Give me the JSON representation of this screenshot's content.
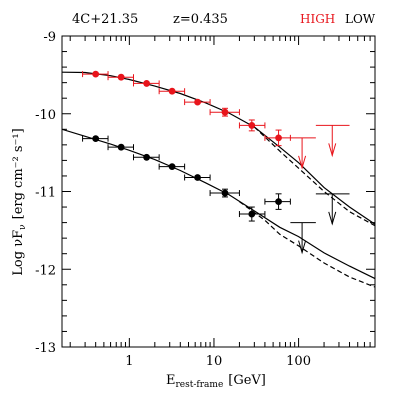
{
  "chart_data": {
    "type": "scatter",
    "header": {
      "source": "4C+21.35",
      "redshift": "z=0.435",
      "state_high": "HIGH",
      "state_low": "LOW"
    },
    "colors": {
      "high": "#e8141b",
      "low": "#000000",
      "axis": "#000000"
    },
    "xlabel": {
      "main": "E",
      "sub": "rest-frame",
      "unit": "[GeV]"
    },
    "ylabel": "Log νF",
    "ylabel_sub": "ν",
    "ylabel_unit": "[erg cm⁻² s⁻¹]",
    "x_scale": "log",
    "xlim": [
      0.16,
      800
    ],
    "ylim": [
      -13,
      -9
    ],
    "xticks": [
      1,
      10,
      100
    ],
    "xtick_labels": [
      "1",
      "10",
      "100"
    ],
    "yticks": [
      -9,
      -10,
      -11,
      -12,
      -13
    ],
    "ytick_labels": [
      "-9",
      "-10",
      "-11",
      "-12",
      "-13"
    ],
    "series": [
      {
        "name": "HIGH",
        "color": "#e8141b",
        "points": [
          {
            "x": 0.4,
            "y": -9.49,
            "xlo": 0.28,
            "xhi": 0.56
          },
          {
            "x": 0.8,
            "y": -9.53,
            "xlo": 0.56,
            "xhi": 1.12
          },
          {
            "x": 1.6,
            "y": -9.61,
            "xlo": 1.12,
            "xhi": 2.25
          },
          {
            "x": 3.2,
            "y": -9.71,
            "xlo": 2.25,
            "xhi": 4.5
          },
          {
            "x": 6.4,
            "y": -9.85,
            "xlo": 4.5,
            "xhi": 9.0
          },
          {
            "x": 13.5,
            "y": -9.98,
            "xlo": 9.0,
            "xhi": 20.0,
            "yerr": 0.05
          },
          {
            "x": 28.0,
            "y": -10.15,
            "xlo": 20.0,
            "xhi": 40.0,
            "yerr": 0.07
          },
          {
            "x": 58.0,
            "y": -10.31,
            "xlo": 40.0,
            "xhi": 80.0,
            "yerr": 0.1
          }
        ],
        "upper_limits": [
          {
            "x": 110,
            "y": -10.31,
            "xlo": 80,
            "xhi": 160
          },
          {
            "x": 250,
            "y": -10.15,
            "xlo": 160,
            "xhi": 400
          }
        ],
        "model_solid": [
          [
            0.16,
            -9.465
          ],
          [
            0.3,
            -9.47
          ],
          [
            0.6,
            -9.51
          ],
          [
            1,
            -9.56
          ],
          [
            2,
            -9.645
          ],
          [
            4,
            -9.74
          ],
          [
            8,
            -9.86
          ],
          [
            15,
            -9.99
          ],
          [
            30,
            -10.17
          ],
          [
            60,
            -10.43
          ],
          [
            100,
            -10.63
          ],
          [
            200,
            -10.95
          ],
          [
            400,
            -11.2
          ],
          [
            800,
            -11.42
          ]
        ],
        "model_dashed": [
          [
            30,
            -10.17
          ],
          [
            60,
            -10.48
          ],
          [
            100,
            -10.7
          ],
          [
            200,
            -11.0
          ],
          [
            400,
            -11.26
          ],
          [
            800,
            -11.44
          ]
        ]
      },
      {
        "name": "LOW",
        "color": "#000000",
        "points": [
          {
            "x": 0.4,
            "y": -10.32,
            "xlo": 0.28,
            "xhi": 0.56
          },
          {
            "x": 0.8,
            "y": -10.43,
            "xlo": 0.56,
            "xhi": 1.12
          },
          {
            "x": 1.6,
            "y": -10.56,
            "xlo": 1.12,
            "xhi": 2.25
          },
          {
            "x": 3.2,
            "y": -10.68,
            "xlo": 2.25,
            "xhi": 4.5
          },
          {
            "x": 6.4,
            "y": -10.82,
            "xlo": 4.5,
            "xhi": 9.0
          },
          {
            "x": 13.5,
            "y": -11.02,
            "xlo": 9.0,
            "xhi": 20.0,
            "yerr": 0.05
          },
          {
            "x": 28.0,
            "y": -11.29,
            "xlo": 20.0,
            "xhi": 40.0,
            "yerr": 0.09
          },
          {
            "x": 58.0,
            "y": -11.13,
            "xlo": 40.0,
            "xhi": 80.0,
            "yerr": 0.1
          }
        ],
        "upper_limits": [
          {
            "x": 110,
            "y": -11.4,
            "xlo": 80,
            "xhi": 160
          },
          {
            "x": 250,
            "y": -11.03,
            "xlo": 160,
            "xhi": 400
          }
        ],
        "model_solid": [
          [
            0.16,
            -10.2
          ],
          [
            0.3,
            -10.29
          ],
          [
            0.6,
            -10.39
          ],
          [
            1,
            -10.47
          ],
          [
            2,
            -10.59
          ],
          [
            4,
            -10.73
          ],
          [
            8,
            -10.89
          ],
          [
            15,
            -11.04
          ],
          [
            30,
            -11.25
          ],
          [
            60,
            -11.46
          ],
          [
            100,
            -11.58
          ],
          [
            200,
            -11.79
          ],
          [
            400,
            -11.96
          ],
          [
            800,
            -12.12
          ]
        ],
        "model_dashed": [
          [
            20,
            -11.13
          ],
          [
            40,
            -11.37
          ],
          [
            60,
            -11.55
          ],
          [
            100,
            -11.7
          ],
          [
            200,
            -11.92
          ],
          [
            400,
            -12.1
          ],
          [
            800,
            -12.23
          ]
        ]
      }
    ]
  }
}
